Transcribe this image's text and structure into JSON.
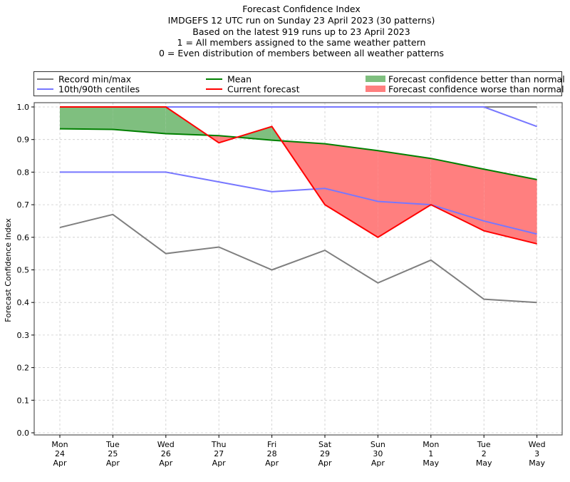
{
  "chart_data": {
    "type": "line",
    "title_lines": [
      "Forecast Confidence Index",
      "IMDGEFS 12 UTC run on Sunday 23 April 2023 (30 patterns)",
      "Based on the latest 919 runs up to 23 April 2023",
      "1 = All members assigned to the same weather pattern",
      "0 = Even distribution of members between all weather patterns"
    ],
    "xlabel": "",
    "ylabel": "Forecast Confidence Index",
    "ylim": [
      0,
      1.0
    ],
    "yticks": [
      "0.0",
      "0.1",
      "0.2",
      "0.3",
      "0.4",
      "0.5",
      "0.6",
      "0.7",
      "0.8",
      "0.9",
      "1.0"
    ],
    "grid": true,
    "legend_position": "top (above plot, outside)",
    "categories": [
      [
        "Mon",
        "24",
        "Apr"
      ],
      [
        "Tue",
        "25",
        "Apr"
      ],
      [
        "Wed",
        "26",
        "Apr"
      ],
      [
        "Thu",
        "27",
        "Apr"
      ],
      [
        "Fri",
        "28",
        "Apr"
      ],
      [
        "Sat",
        "29",
        "Apr"
      ],
      [
        "Sun",
        "30",
        "Apr"
      ],
      [
        "Mon",
        "1",
        "May"
      ],
      [
        "Tue",
        "2",
        "May"
      ],
      [
        "Wed",
        "3",
        "May"
      ]
    ],
    "series": [
      {
        "name": "Record min",
        "legend": "Record min/max",
        "color": "#7f7f7f",
        "values": [
          0.63,
          0.67,
          0.55,
          0.57,
          0.5,
          0.56,
          0.46,
          0.53,
          0.41,
          0.4
        ]
      },
      {
        "name": "Record max",
        "color": "#7f7f7f",
        "values": [
          1.0,
          1.0,
          1.0,
          1.0,
          1.0,
          1.0,
          1.0,
          1.0,
          1.0,
          1.0
        ]
      },
      {
        "name": "10th centile",
        "legend": "10th/90th centiles",
        "color": "#7777ff",
        "values": [
          0.8,
          0.8,
          0.8,
          0.77,
          0.74,
          0.75,
          0.71,
          0.7,
          0.65,
          0.61
        ]
      },
      {
        "name": "90th centile",
        "color": "#7777ff",
        "values": [
          1.0,
          1.0,
          1.0,
          1.0,
          1.0,
          1.0,
          1.0,
          1.0,
          1.0,
          0.94
        ]
      },
      {
        "name": "Mean",
        "legend": "Mean",
        "color": "#008000",
        "values": [
          0.933,
          0.931,
          0.918,
          0.912,
          0.898,
          0.887,
          0.866,
          0.842,
          0.809,
          0.777
        ]
      },
      {
        "name": "Current forecast",
        "legend": "Current forecast",
        "color": "#ff0000",
        "values": [
          1.0,
          1.0,
          1.0,
          0.89,
          0.94,
          0.7,
          0.6,
          0.7,
          0.62,
          0.58
        ]
      }
    ],
    "fills": [
      {
        "legend": "Forecast confidence better than normal",
        "color": "#7fbf7f",
        "condition": "current > mean"
      },
      {
        "legend": "Forecast confidence worse than normal",
        "color": "#ff7f7f",
        "condition": "current < mean"
      }
    ],
    "legend": [
      {
        "label": "Record min/max",
        "kind": "line",
        "color": "#7f7f7f"
      },
      {
        "label": "10th/90th centiles",
        "kind": "line",
        "color": "#7777ff"
      },
      {
        "label": "Mean",
        "kind": "line",
        "color": "#008000"
      },
      {
        "label": "Current forecast",
        "kind": "line",
        "color": "#ff0000"
      },
      {
        "label": "Forecast confidence better than normal",
        "kind": "patch",
        "color": "#7fbf7f"
      },
      {
        "label": "Forecast confidence worse than normal",
        "kind": "patch",
        "color": "#ff7f7f"
      }
    ]
  }
}
